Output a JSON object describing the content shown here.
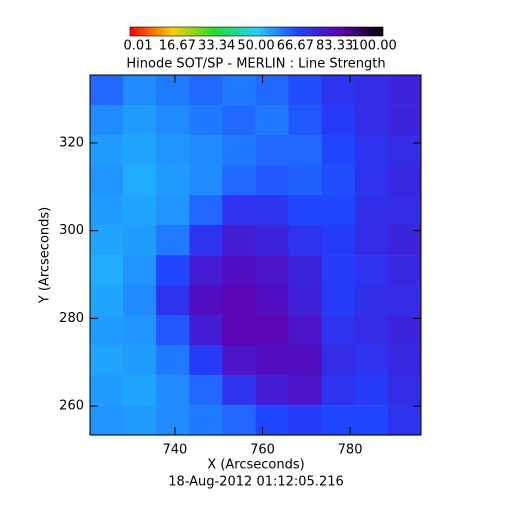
{
  "chart_data": {
    "type": "heatmap",
    "title": "Hinode SOT/SP - MERLIN : Line Strength",
    "xlabel": "X (Arcseconds)",
    "ylabel": "Y (Arcseconds)",
    "footer": "18-Aug-2012 01:12:05.216",
    "xlim": [
      720.6,
      796.2
    ],
    "ylim": [
      253.4,
      335.5
    ],
    "xticks": [
      740,
      760,
      780
    ],
    "yticks": [
      260,
      280,
      300,
      320
    ],
    "x": [
      724.4,
      731.9,
      739.5,
      747.1,
      754.6,
      762.2,
      769.7,
      777.3,
      784.9,
      792.4
    ],
    "y": [
      332.1,
      325.2,
      318.4,
      311.5,
      304.7,
      297.9,
      291.0,
      284.2,
      277.3,
      270.5,
      263.7,
      256.8
    ],
    "z": [
      [
        62,
        58,
        60,
        62,
        60,
        62,
        65,
        70,
        72,
        74
      ],
      [
        58,
        56,
        58,
        60,
        62,
        60,
        64,
        68,
        72,
        74
      ],
      [
        56,
        55,
        57,
        58,
        60,
        62,
        62,
        66,
        70,
        72
      ],
      [
        57,
        54,
        56,
        58,
        62,
        64,
        63,
        65,
        70,
        73
      ],
      [
        56,
        55,
        57,
        62,
        70,
        70,
        66,
        66,
        71,
        72
      ],
      [
        55,
        56,
        60,
        70,
        76,
        74,
        70,
        68,
        72,
        74
      ],
      [
        54,
        57,
        66,
        76,
        80,
        78,
        74,
        68,
        70,
        73
      ],
      [
        55,
        58,
        70,
        80,
        82,
        80,
        75,
        68,
        71,
        72
      ],
      [
        56,
        57,
        64,
        76,
        82,
        82,
        78,
        70,
        72,
        74
      ],
      [
        55,
        56,
        60,
        68,
        78,
        80,
        80,
        72,
        70,
        73
      ],
      [
        56,
        55,
        58,
        62,
        70,
        76,
        78,
        70,
        68,
        72
      ],
      [
        57,
        56,
        58,
        60,
        62,
        66,
        68,
        66,
        66,
        70
      ]
    ],
    "zlim": [
      0.01,
      100
    ],
    "colorbar_ticks": [
      0.01,
      16.67,
      33.34,
      {
        "value": 50,
        "label": "50.00"
      },
      66.67,
      83.33,
      {
        "value": 100,
        "label": "100.00"
      }
    ],
    "colorscale": [
      "#ff0000",
      "#ffd000",
      "#20e020",
      "#20d0ff",
      "#2040ff",
      "#6000b0",
      "#000000"
    ]
  }
}
